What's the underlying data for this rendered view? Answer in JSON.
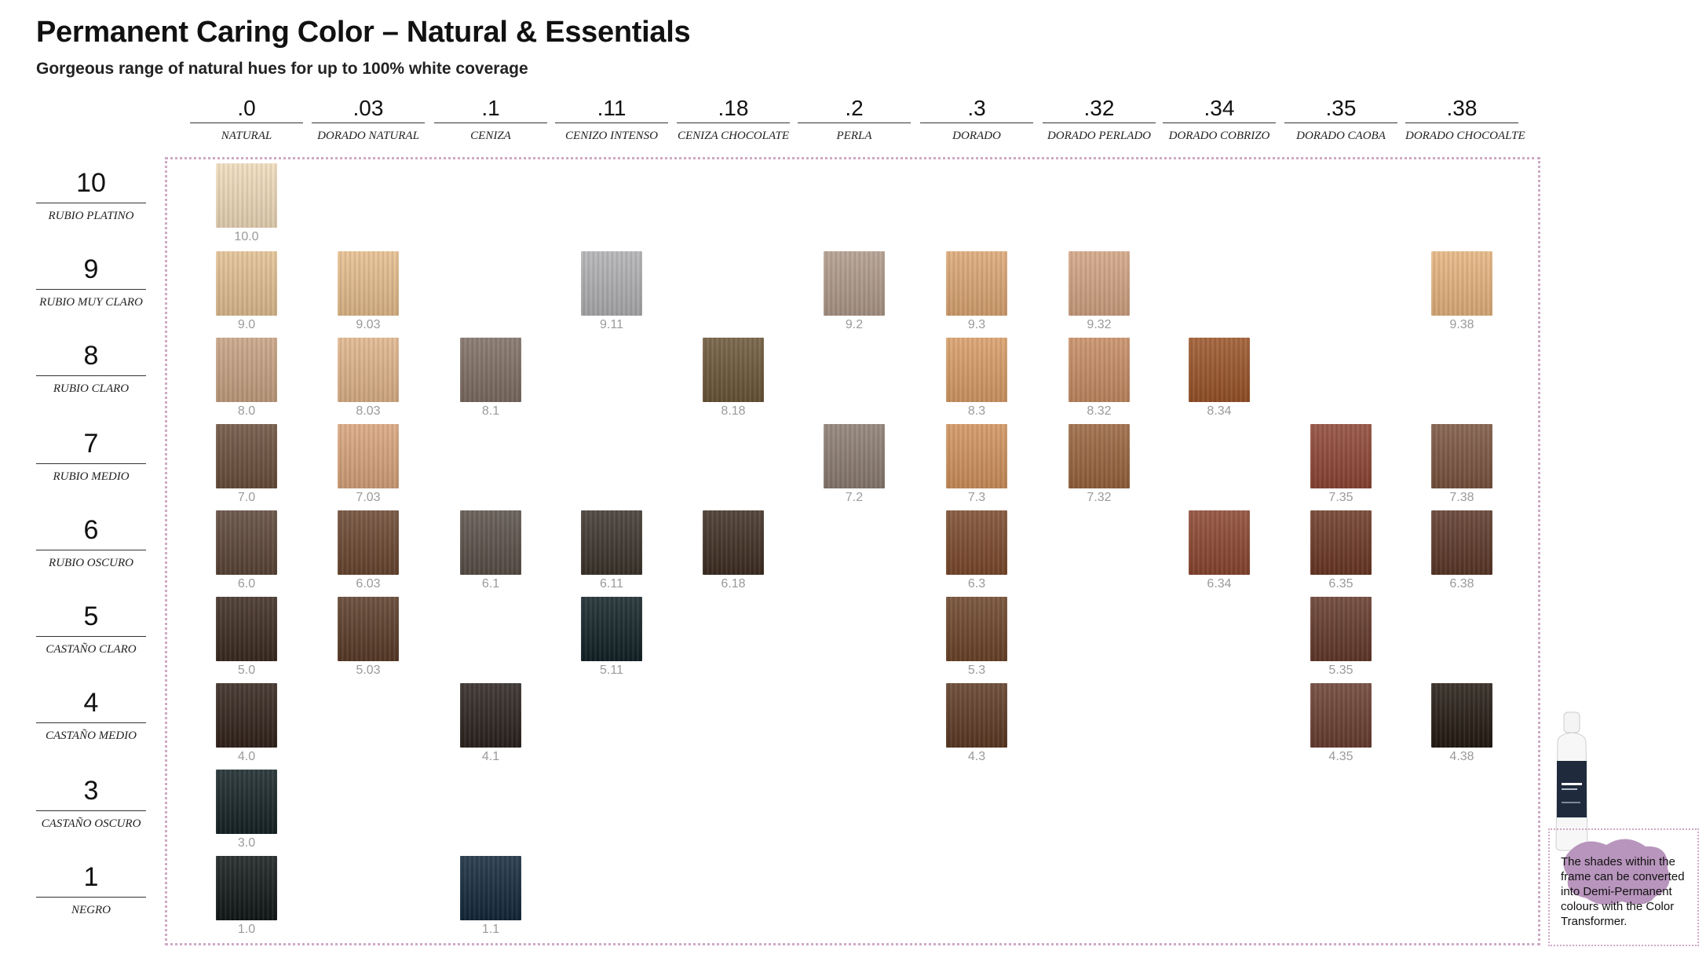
{
  "title": "Permanent Caring Color – Natural & Essentials",
  "subtitle": "Gorgeous range of natural hues for up to 100% white coverage",
  "columns": [
    {
      "code": ".0",
      "name": "NATURAL"
    },
    {
      "code": ".03",
      "name": "DORADO NATURAL"
    },
    {
      "code": ".1",
      "name": "CENIZA"
    },
    {
      "code": ".11",
      "name": "CENIZO INTENSO"
    },
    {
      "code": ".18",
      "name": "CENIZA CHOCOLATE"
    },
    {
      "code": ".2",
      "name": "PERLA"
    },
    {
      "code": ".3",
      "name": "DORADO"
    },
    {
      "code": ".32",
      "name": "DORADO PERLADO"
    },
    {
      "code": ".34",
      "name": "DORADO COBRIZO"
    },
    {
      "code": ".35",
      "name": "DORADO CAOBA"
    },
    {
      "code": ".38",
      "name": "DORADO CHOCOALTE"
    }
  ],
  "rows": [
    {
      "level": "10",
      "name": "RUBIO PLATINO"
    },
    {
      "level": "9",
      "name": "RUBIO MUY CLARO"
    },
    {
      "level": "8",
      "name": "RUBIO CLARO"
    },
    {
      "level": "7",
      "name": "RUBIO MEDIO"
    },
    {
      "level": "6",
      "name": "RUBIO OSCURO"
    },
    {
      "level": "5",
      "name": "CASTAÑO CLARO"
    },
    {
      "level": "4",
      "name": "CASTAÑO MEDIO"
    },
    {
      "level": "3",
      "name": "CASTAÑO OSCURO"
    },
    {
      "level": "1",
      "name": "NEGRO"
    }
  ],
  "swatches": [
    {
      "row": 0,
      "col": 0,
      "label": "10.0",
      "color": "#f1dcbc"
    },
    {
      "row": 1,
      "col": 0,
      "label": "9.0",
      "color": "#e3c192"
    },
    {
      "row": 1,
      "col": 1,
      "label": "9.03",
      "color": "#e7be8d"
    },
    {
      "row": 1,
      "col": 3,
      "label": "9.11",
      "color": "#b1b0b3"
    },
    {
      "row": 1,
      "col": 5,
      "label": "9.2",
      "color": "#b09b8b"
    },
    {
      "row": 1,
      "col": 6,
      "label": "9.3",
      "color": "#dea774"
    },
    {
      "row": 1,
      "col": 7,
      "label": "9.32",
      "color": "#d3a483"
    },
    {
      "row": 1,
      "col": 10,
      "label": "9.38",
      "color": "#e7b57f"
    },
    {
      "row": 2,
      "col": 0,
      "label": "8.0",
      "color": "#c8a282"
    },
    {
      "row": 2,
      "col": 1,
      "label": "8.03",
      "color": "#e1b58b"
    },
    {
      "row": 2,
      "col": 2,
      "label": "8.1",
      "color": "#7f6e63"
    },
    {
      "row": 2,
      "col": 4,
      "label": "8.18",
      "color": "#6c5638"
    },
    {
      "row": 2,
      "col": 6,
      "label": "8.3",
      "color": "#d99d66"
    },
    {
      "row": 2,
      "col": 7,
      "label": "8.32",
      "color": "#c88c63"
    },
    {
      "row": 2,
      "col": 8,
      "label": "8.34",
      "color": "#9b5428"
    },
    {
      "row": 3,
      "col": 0,
      "label": "7.0",
      "color": "#6b4f3c"
    },
    {
      "row": 3,
      "col": 1,
      "label": "7.03",
      "color": "#d9a57c"
    },
    {
      "row": 3,
      "col": 5,
      "label": "7.2",
      "color": "#8d7d72"
    },
    {
      "row": 3,
      "col": 6,
      "label": "7.3",
      "color": "#d2935d"
    },
    {
      "row": 3,
      "col": 7,
      "label": "7.32",
      "color": "#99653f"
    },
    {
      "row": 3,
      "col": 9,
      "label": "7.35",
      "color": "#8e4634"
    },
    {
      "row": 3,
      "col": 10,
      "label": "7.38",
      "color": "#7b5540"
    },
    {
      "row": 4,
      "col": 0,
      "label": "6.0",
      "color": "#5c4638"
    },
    {
      "row": 4,
      "col": 1,
      "label": "6.03",
      "color": "#6a4730"
    },
    {
      "row": 4,
      "col": 2,
      "label": "6.1",
      "color": "#5b5049"
    },
    {
      "row": 4,
      "col": 3,
      "label": "6.11",
      "color": "#3d342c"
    },
    {
      "row": 4,
      "col": 4,
      "label": "6.18",
      "color": "#3f2e22"
    },
    {
      "row": 4,
      "col": 6,
      "label": "6.3",
      "color": "#7c4a2c"
    },
    {
      "row": 4,
      "col": 8,
      "label": "6.34",
      "color": "#8c4730"
    },
    {
      "row": 4,
      "col": 9,
      "label": "6.35",
      "color": "#6c3826"
    },
    {
      "row": 4,
      "col": 10,
      "label": "6.38",
      "color": "#5c3828"
    },
    {
      "row": 5,
      "col": 0,
      "label": "5.0",
      "color": "#3c2a20"
    },
    {
      "row": 5,
      "col": 1,
      "label": "5.03",
      "color": "#5b3c28"
    },
    {
      "row": 5,
      "col": 3,
      "label": "5.11",
      "color": "#122226"
    },
    {
      "row": 5,
      "col": 6,
      "label": "5.3",
      "color": "#6d4428"
    },
    {
      "row": 5,
      "col": 9,
      "label": "5.35",
      "color": "#64392a"
    },
    {
      "row": 6,
      "col": 0,
      "label": "4.0",
      "color": "#33231b"
    },
    {
      "row": 6,
      "col": 2,
      "label": "4.1",
      "color": "#2b231e"
    },
    {
      "row": 6,
      "col": 6,
      "label": "4.3",
      "color": "#5e3a24"
    },
    {
      "row": 6,
      "col": 9,
      "label": "4.35",
      "color": "#6a3e30"
    },
    {
      "row": 6,
      "col": 10,
      "label": "4.38",
      "color": "#241a12"
    },
    {
      "row": 7,
      "col": 0,
      "label": "3.0",
      "color": "#152325"
    },
    {
      "row": 8,
      "col": 0,
      "label": "1.0",
      "color": "#121818"
    },
    {
      "row": 8,
      "col": 2,
      "label": "1.1",
      "color": "#13283a"
    }
  ],
  "note": "The shades within the frame can be converted into Demi-Permanent colours with the Color Transformer.",
  "colors": {
    "frame_border": "#cfa9c5",
    "splash": "#b895bd",
    "label_gray": "#9a9a9a"
  }
}
